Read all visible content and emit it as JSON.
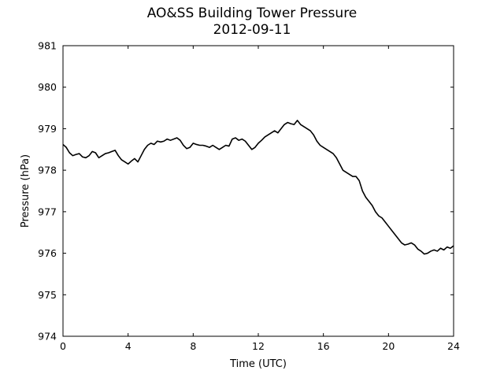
{
  "chart_data": {
    "type": "line",
    "title": "AO&SS Building Tower Pressure",
    "subtitle": "2012-09-11",
    "xlabel": "Time (UTC)",
    "ylabel": "Pressure (hPa)",
    "xlim": [
      0,
      24
    ],
    "ylim": [
      974,
      981
    ],
    "xticks": [
      0,
      4,
      8,
      12,
      16,
      20,
      24
    ],
    "yticks": [
      974,
      975,
      976,
      977,
      978,
      979,
      980,
      981
    ],
    "grid": false,
    "line_color": "#000000",
    "series": [
      {
        "x": [
          0,
          0.2,
          0.4,
          0.6,
          0.8,
          1.0,
          1.2,
          1.4,
          1.6,
          1.8,
          2.0,
          2.2,
          2.4,
          2.6,
          2.8,
          3.0,
          3.2,
          3.4,
          3.6,
          3.8,
          4.0,
          4.2,
          4.4,
          4.6,
          4.8,
          5.0,
          5.2,
          5.4,
          5.6,
          5.8,
          6.0,
          6.2,
          6.4,
          6.6,
          6.8,
          7.0,
          7.2,
          7.4,
          7.6,
          7.8,
          8.0,
          8.2,
          8.4,
          8.6,
          8.8,
          9.0,
          9.2,
          9.4,
          9.6,
          9.8,
          10.0,
          10.2,
          10.4,
          10.6,
          10.8,
          11.0,
          11.2,
          11.4,
          11.6,
          11.8,
          12.0,
          12.2,
          12.4,
          12.6,
          12.8,
          13.0,
          13.2,
          13.4,
          13.6,
          13.8,
          14.0,
          14.2,
          14.4,
          14.6,
          14.8,
          15.0,
          15.2,
          15.4,
          15.6,
          15.8,
          16.0,
          16.2,
          16.4,
          16.6,
          16.8,
          17.0,
          17.2,
          17.4,
          17.6,
          17.8,
          18.0,
          18.2,
          18.4,
          18.6,
          18.8,
          19.0,
          19.2,
          19.4,
          19.6,
          19.8,
          20.0,
          20.2,
          20.4,
          20.6,
          20.8,
          21.0,
          21.2,
          21.4,
          21.6,
          21.8,
          22.0,
          22.2,
          22.4,
          22.6,
          22.8,
          23.0,
          23.2,
          23.4,
          23.6,
          23.8,
          24.0
        ],
        "values": [
          978.62,
          978.55,
          978.42,
          978.35,
          978.38,
          978.4,
          978.32,
          978.3,
          978.35,
          978.45,
          978.42,
          978.3,
          978.35,
          978.4,
          978.42,
          978.45,
          978.48,
          978.35,
          978.25,
          978.2,
          978.15,
          978.22,
          978.28,
          978.2,
          978.35,
          978.5,
          978.6,
          978.65,
          978.62,
          978.7,
          978.68,
          978.7,
          978.75,
          978.72,
          978.75,
          978.78,
          978.72,
          978.6,
          978.52,
          978.55,
          978.65,
          978.62,
          978.6,
          978.6,
          978.58,
          978.55,
          978.6,
          978.55,
          978.5,
          978.55,
          978.6,
          978.58,
          978.75,
          978.78,
          978.72,
          978.75,
          978.7,
          978.6,
          978.5,
          978.55,
          978.65,
          978.72,
          978.8,
          978.85,
          978.9,
          978.95,
          978.9,
          979.0,
          979.1,
          979.15,
          979.12,
          979.1,
          979.2,
          979.1,
          979.05,
          979.0,
          978.95,
          978.85,
          978.7,
          978.6,
          978.55,
          978.5,
          978.45,
          978.4,
          978.3,
          978.15,
          978.0,
          977.95,
          977.9,
          977.85,
          977.85,
          977.75,
          977.5,
          977.35,
          977.25,
          977.15,
          977.0,
          976.9,
          976.85,
          976.75,
          976.65,
          976.55,
          976.45,
          976.35,
          976.25,
          976.2,
          976.22,
          976.25,
          976.2,
          976.1,
          976.05,
          975.98,
          976.0,
          976.05,
          976.08,
          976.05,
          976.12,
          976.08,
          976.15,
          976.12,
          976.18
        ]
      }
    ]
  }
}
